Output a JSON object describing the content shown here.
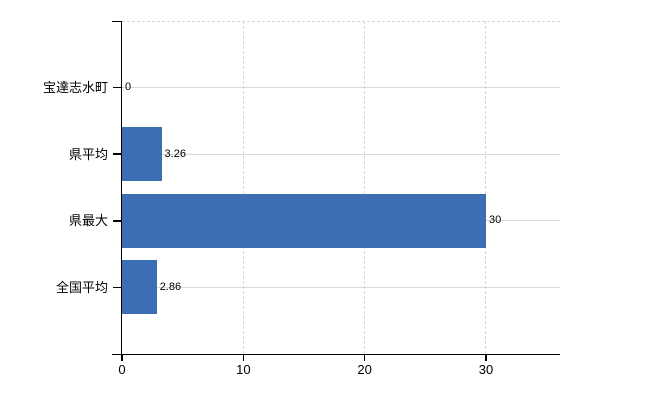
{
  "chart_data": {
    "type": "bar",
    "orientation": "horizontal",
    "title": "",
    "categories": [
      "宝達志水町",
      "県平均",
      "県最大",
      "全国平均"
    ],
    "values": [
      0,
      3.26,
      30,
      2.86
    ],
    "value_labels": [
      "0",
      "3.26",
      "30",
      "2.86"
    ],
    "x_axis": {
      "min": 0,
      "max": 36.1,
      "ticks": [
        0,
        10,
        20,
        30
      ],
      "tick_labels": [
        "0",
        "10",
        "20",
        "30"
      ]
    },
    "y_axis": {
      "tick_marks_at_category_centers": true
    },
    "legend": null,
    "grid": {
      "horizontal_gridlines": "solid, at category centers",
      "vertical_gridlines": "dashed, at x ticks 10/20/30",
      "top_border": "dashed"
    }
  },
  "colors": {
    "bar": "#3c6eb4",
    "h_gridline": "#d7dcd3",
    "v_gridline": "#d6d4dd",
    "axis": "#000000",
    "text": "#000000",
    "background": "#ffffff"
  }
}
